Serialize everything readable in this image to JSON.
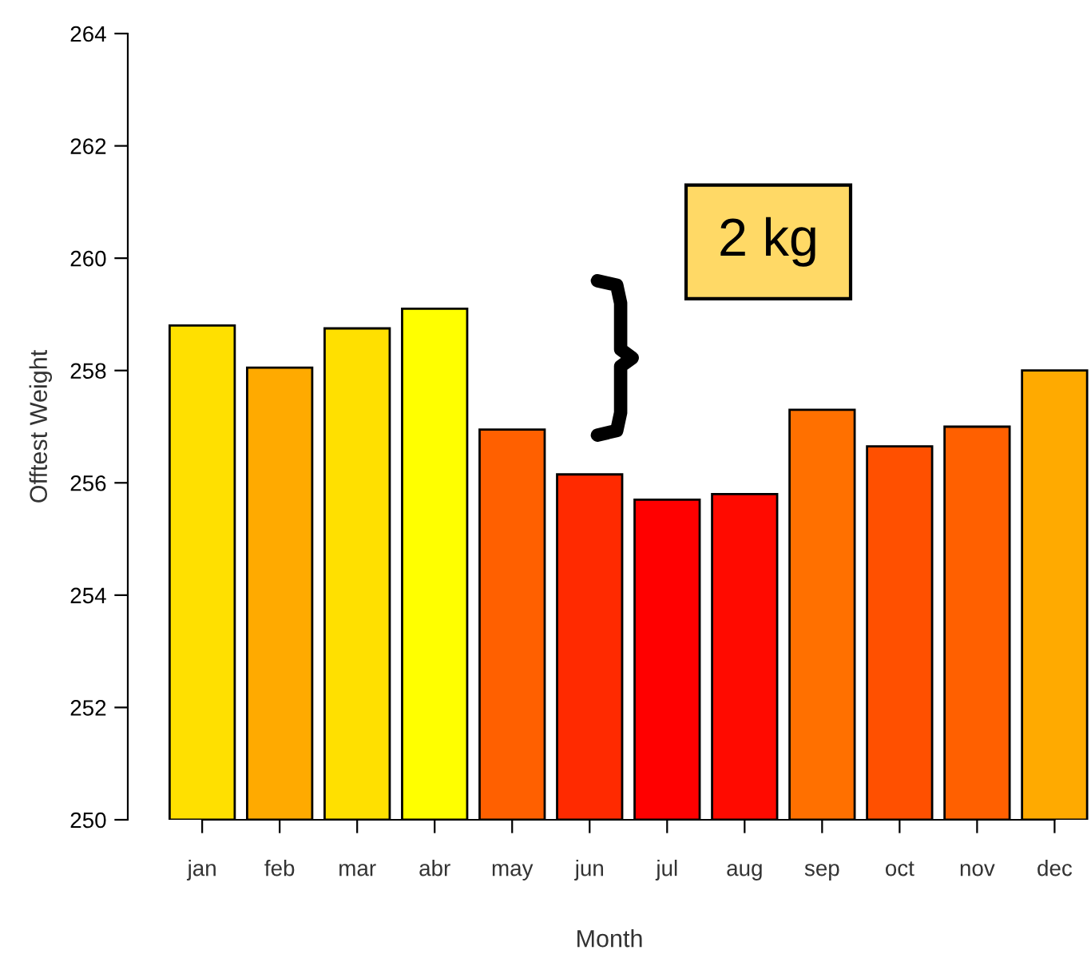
{
  "chart_data": {
    "type": "bar",
    "xlabel": "Month",
    "ylabel": "Offtest Weight",
    "categories": [
      "jan",
      "feb",
      "mar",
      "abr",
      "may",
      "jun",
      "jul",
      "aug",
      "sep",
      "oct",
      "nov",
      "dec"
    ],
    "values": [
      258.8,
      258.05,
      258.75,
      259.1,
      256.95,
      256.15,
      255.7,
      255.8,
      257.3,
      256.65,
      257.0,
      258.0
    ],
    "colors": [
      "#ffe000",
      "#ffaa00",
      "#ffe000",
      "#ffff00",
      "#ff6000",
      "#ff2a00",
      "#ff0000",
      "#ff0a00",
      "#ff7000",
      "#ff5000",
      "#ff6000",
      "#ffaa00"
    ],
    "ylim": [
      250,
      264
    ],
    "yticks": [
      250,
      252,
      254,
      256,
      258,
      260,
      262,
      264
    ],
    "annotations": [
      "2 kg"
    ]
  }
}
